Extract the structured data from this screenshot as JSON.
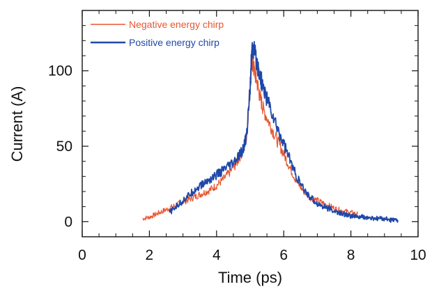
{
  "chart_data": {
    "type": "line",
    "title": "",
    "xlabel": "Time (ps)",
    "ylabel": "Current (A)",
    "xlim": [
      0,
      10
    ],
    "ylim": [
      -10,
      140
    ],
    "x_ticks": [
      0,
      2,
      4,
      6,
      8,
      10
    ],
    "x_tick_labels": [
      "0",
      "2",
      "4",
      "6",
      "8",
      "10"
    ],
    "y_ticks": [
      0,
      50,
      100
    ],
    "y_tick_labels": [
      "0",
      "50",
      "100"
    ],
    "grid": false,
    "legend_position": "top-left",
    "series": [
      {
        "name": "Negative energy chirp",
        "color": "#e8552f",
        "x": [
          1.8,
          2.0,
          2.2,
          2.4,
          2.6,
          2.8,
          3.0,
          3.2,
          3.4,
          3.6,
          3.8,
          4.0,
          4.2,
          4.4,
          4.6,
          4.8,
          4.9,
          5.0,
          5.05,
          5.1,
          5.2,
          5.3,
          5.4,
          5.6,
          5.8,
          6.0,
          6.2,
          6.4,
          6.6,
          6.8,
          7.0,
          7.2,
          7.4,
          7.6,
          7.8,
          8.0,
          8.2
        ],
        "y": [
          2,
          3,
          5,
          7,
          9,
          11,
          13,
          15,
          17,
          19,
          21,
          24,
          28,
          33,
          39,
          48,
          58,
          90,
          108,
          102,
          93,
          82,
          74,
          64,
          54,
          45,
          35,
          26,
          20,
          16,
          14,
          12,
          10,
          8,
          7,
          6,
          5
        ]
      },
      {
        "name": "Positive energy chirp",
        "color": "#1f48a8",
        "x": [
          2.6,
          2.8,
          3.0,
          3.2,
          3.4,
          3.6,
          3.8,
          4.0,
          4.2,
          4.4,
          4.6,
          4.8,
          4.9,
          5.0,
          5.05,
          5.1,
          5.2,
          5.3,
          5.4,
          5.6,
          5.8,
          6.0,
          6.2,
          6.4,
          6.6,
          6.8,
          7.0,
          7.2,
          7.4,
          7.6,
          7.8,
          8.0,
          8.2,
          8.4,
          8.6,
          8.8,
          9.0,
          9.2,
          9.4
        ],
        "y": [
          6,
          10,
          14,
          18,
          22,
          25,
          28,
          31,
          34,
          37,
          41,
          48,
          58,
          90,
          112,
          114,
          106,
          96,
          88,
          75,
          62,
          52,
          40,
          29,
          21,
          16,
          12,
          10,
          8,
          6,
          5,
          4,
          3,
          3,
          2,
          2,
          2,
          1,
          1
        ]
      }
    ]
  }
}
